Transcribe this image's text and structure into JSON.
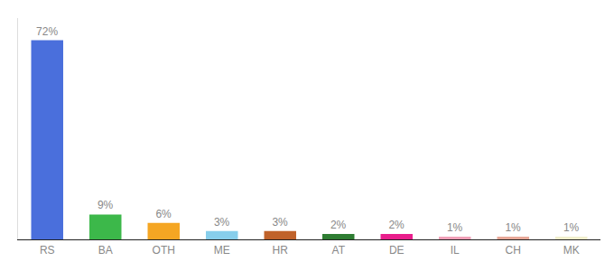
{
  "chart_data": {
    "type": "bar",
    "categories": [
      "RS",
      "BA",
      "OTH",
      "ME",
      "HR",
      "AT",
      "DE",
      "IL",
      "CH",
      "MK"
    ],
    "values": [
      72,
      9,
      6,
      3,
      3,
      2,
      2,
      1,
      1,
      1
    ],
    "value_labels": [
      "72%",
      "9%",
      "6%",
      "3%",
      "3%",
      "2%",
      "2%",
      "1%",
      "1%",
      "1%"
    ],
    "colors": [
      "#4a6fdc",
      "#3cb84a",
      "#f5a623",
      "#87ceeb",
      "#c0622a",
      "#2e7d32",
      "#e91e8c",
      "#f0a0b8",
      "#e8a898",
      "#f0eecc"
    ],
    "ylim": [
      0,
      80
    ],
    "grid": false,
    "data_labels": true,
    "tick_labels": "x"
  }
}
